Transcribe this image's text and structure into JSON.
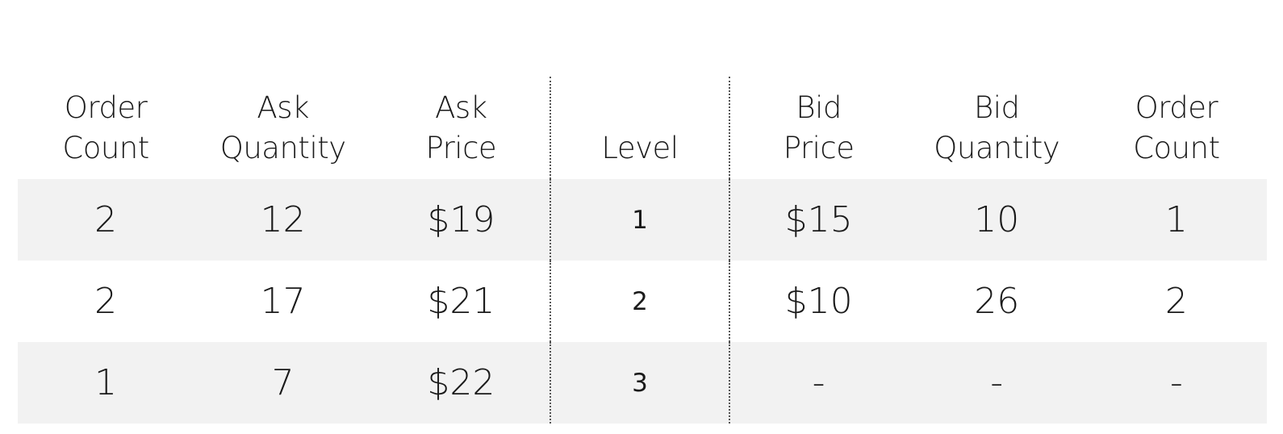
{
  "order_book": {
    "headers": [
      {
        "line1": "Order",
        "line2": "Count"
      },
      {
        "line1": "Ask",
        "line2": "Quantity"
      },
      {
        "line1": "Ask",
        "line2": "Price"
      },
      {
        "line1": "",
        "line2": "Level"
      },
      {
        "line1": "Bid",
        "line2": "Price"
      },
      {
        "line1": "Bid",
        "line2": "Quantity"
      },
      {
        "line1": "Order",
        "line2": "Count"
      }
    ],
    "rows": [
      {
        "ask_order_count": "2",
        "ask_quantity": "12",
        "ask_price": "$19",
        "level": "1",
        "bid_price": "$15",
        "bid_quantity": "10",
        "bid_order_count": "1"
      },
      {
        "ask_order_count": "2",
        "ask_quantity": "17",
        "ask_price": "$21",
        "level": "2",
        "bid_price": "$10",
        "bid_quantity": "26",
        "bid_order_count": "2"
      },
      {
        "ask_order_count": "1",
        "ask_quantity": "7",
        "ask_price": "$22",
        "level": "3",
        "bid_price": "-",
        "bid_quantity": "-",
        "bid_order_count": "-"
      }
    ]
  }
}
